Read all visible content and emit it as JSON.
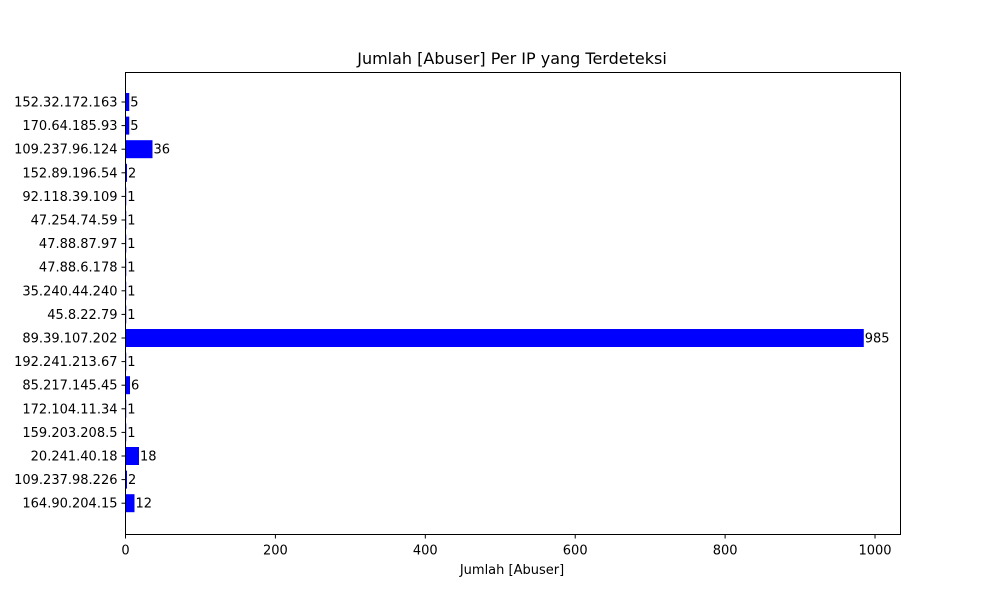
{
  "chart_data": {
    "type": "bar",
    "orientation": "horizontal",
    "title": "Jumlah [Abuser] Per IP yang Terdeteksi",
    "xlabel": "Jumlah [Abuser]",
    "ylabel": "",
    "xlim": [
      0,
      1034
    ],
    "xticks": [
      0,
      200,
      400,
      600,
      800,
      1000
    ],
    "grid": false,
    "bar_color": "#0000ff",
    "categories": [
      "152.32.172.163",
      "170.64.185.93",
      "109.237.96.124",
      "152.89.196.54",
      "92.118.39.109",
      "47.254.74.59",
      "47.88.87.97",
      "47.88.6.178",
      "35.240.44.240",
      "45.8.22.79",
      "89.39.107.202",
      "192.241.213.67",
      "85.217.145.45",
      "172.104.11.34",
      "159.203.208.5",
      "20.241.40.18",
      "109.237.98.226",
      "164.90.204.15"
    ],
    "values": [
      5,
      5,
      36,
      2,
      1,
      1,
      1,
      1,
      1,
      1,
      985,
      1,
      6,
      1,
      1,
      18,
      2,
      12
    ]
  }
}
